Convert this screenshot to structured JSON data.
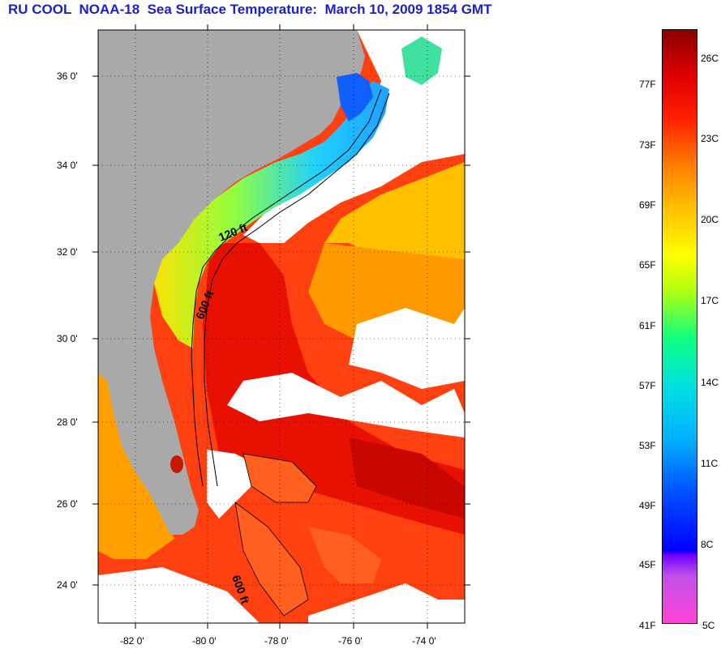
{
  "title": "RU COOL  NOAA-18  Sea Surface Temperature:  March 10, 2009 1854 GMT",
  "map": {
    "lat_labels": [
      "36 0'",
      "34 0'",
      "32 0'",
      "30 0'",
      "28 0'",
      "26 0'",
      "24 0'"
    ],
    "lon_labels": [
      "-82 0'",
      "-80 0'",
      "-78 0'",
      "-76 0'",
      "-74 0'"
    ],
    "contour_labels": [
      "120 ft",
      "600 ft",
      "600 ft"
    ],
    "colors": {
      "land": "#a9a9a9",
      "cloud": "#ffffff",
      "warm_ocean": "#ff3a10",
      "gulf_stream": "#e01000",
      "cool_shelf": "#20c0ff"
    }
  },
  "colorbar": {
    "fahrenheit": [
      "77F",
      "73F",
      "69F",
      "65F",
      "61F",
      "57F",
      "53F",
      "49F",
      "45F",
      "41F"
    ],
    "celsius": [
      "26C",
      "23C",
      "20C",
      "17C",
      "14C",
      "11C",
      "8C",
      "5C"
    ]
  }
}
